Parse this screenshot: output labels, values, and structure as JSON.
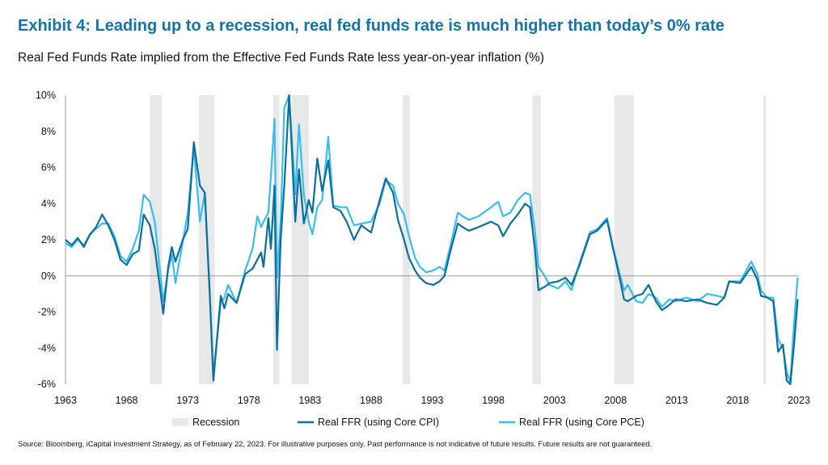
{
  "title": "Exhibit 4: Leading up to a recession, real fed funds rate is much higher than today’s 0% rate",
  "subtitle": "Real Fed Funds Rate implied from the Effective Fed Funds Rate less year-on-year inflation (%)",
  "source": "Source: Bloomberg, iCapital Investment Strategy, as of February 22, 2023. For illustrative purposes only. Past performance is not indicative of future results. Future results are not guaranteed.",
  "chart_data": {
    "type": "line",
    "xlim": [
      1963,
      2023
    ],
    "ylim": [
      -6,
      10
    ],
    "x_ticks": [
      "1963",
      "1968",
      "1973",
      "1978",
      "1983",
      "1988",
      "1993",
      "1998",
      "2003",
      "2008",
      "2013",
      "2018",
      "2023"
    ],
    "y_ticks": [
      "10%",
      "8%",
      "6%",
      "4%",
      "2%",
      "0%",
      "-2%",
      "-4%",
      "-6%"
    ],
    "legend_position": "bottom",
    "recession_label": "Recession",
    "recession_color": "#e8e8e8",
    "recessions": [
      [
        1969.9,
        1970.9
      ],
      [
        1973.9,
        1975.2
      ],
      [
        1980.0,
        1980.5
      ],
      [
        1981.5,
        1982.9
      ],
      [
        1990.6,
        1991.2
      ],
      [
        2001.2,
        2001.9
      ],
      [
        2007.9,
        2009.5
      ],
      [
        2020.1,
        2020.3
      ]
    ],
    "x": [
      1963.0,
      1963.5,
      1964.0,
      1964.5,
      1965.0,
      1965.5,
      1966.0,
      1966.5,
      1967.0,
      1967.5,
      1968.0,
      1968.5,
      1969.0,
      1969.4,
      1969.9,
      1970.3,
      1970.7,
      1971.0,
      1971.4,
      1971.7,
      1972.0,
      1972.6,
      1973.0,
      1973.5,
      1974.0,
      1974.4,
      1974.8,
      1975.1,
      1975.7,
      1976.0,
      1976.3,
      1977.0,
      1977.7,
      1978.3,
      1978.7,
      1979.0,
      1979.2,
      1979.6,
      1979.8,
      1980.1,
      1980.3,
      1980.6,
      1980.9,
      1981.3,
      1981.8,
      1982.1,
      1982.5,
      1982.9,
      1983.2,
      1983.6,
      1984.0,
      1984.5,
      1984.9,
      1985.5,
      1986.0,
      1986.6,
      1987.2,
      1988.0,
      1988.7,
      1989.2,
      1989.8,
      1990.2,
      1990.7,
      1991.1,
      1991.6,
      1992.0,
      1992.5,
      1993.1,
      1993.6,
      1994.0,
      1994.5,
      1995.1,
      1995.5,
      1996.0,
      1996.8,
      1997.8,
      1998.4,
      1998.8,
      1999.4,
      2000.0,
      2000.6,
      2001.0,
      2001.4,
      2001.7,
      2002.2,
      2002.6,
      2003.3,
      2003.9,
      2004.4,
      2005.0,
      2005.9,
      2006.5,
      2007.3,
      2007.8,
      2008.3,
      2008.7,
      2009.0,
      2009.7,
      2010.2,
      2010.7,
      2011.3,
      2011.8,
      2012.4,
      2012.9,
      2013.8,
      2014.7,
      2015.5,
      2016.3,
      2016.9,
      2017.3,
      2018.2,
      2019.1,
      2019.6,
      2019.9,
      2020.4,
      2020.9,
      2021.3,
      2021.7,
      2022.0,
      2022.3,
      2022.6,
      2022.9
    ],
    "series": [
      {
        "name": "Real FFR (using Core CPI)",
        "color": "#0b6f9c",
        "values": [
          2.0,
          1.7,
          2.1,
          1.6,
          2.3,
          2.7,
          3.4,
          2.8,
          2.0,
          0.9,
          0.6,
          1.2,
          1.4,
          3.4,
          2.8,
          1.5,
          -0.5,
          -2.1,
          0.5,
          1.6,
          0.8,
          2.0,
          2.6,
          7.4,
          5.0,
          4.6,
          -1.0,
          -5.8,
          -1.1,
          -1.8,
          -1.0,
          -1.5,
          0.1,
          0.4,
          0.9,
          1.3,
          0.5,
          3.2,
          1.5,
          5.0,
          -4.1,
          2.0,
          5.0,
          10.0,
          3.0,
          5.9,
          2.9,
          4.2,
          3.5,
          6.5,
          4.7,
          6.4,
          3.8,
          3.6,
          3.0,
          2.0,
          2.8,
          2.4,
          4.2,
          5.4,
          4.6,
          3.1,
          2.0,
          1.0,
          0.3,
          -0.1,
          -0.4,
          -0.5,
          -0.3,
          0.0,
          1.4,
          2.9,
          2.7,
          2.5,
          2.7,
          3.0,
          2.8,
          2.2,
          2.9,
          3.4,
          4.0,
          3.8,
          1.5,
          -0.8,
          -0.6,
          -0.4,
          -0.3,
          -0.1,
          -0.5,
          0.5,
          2.3,
          2.5,
          3.1,
          1.5,
          0.0,
          -1.3,
          -1.4,
          -1.1,
          -1.0,
          -0.5,
          -1.4,
          -1.9,
          -1.6,
          -1.3,
          -1.4,
          -1.3,
          -1.5,
          -1.6,
          -1.2,
          -0.3,
          -0.4,
          0.5,
          -0.2,
          -1.1,
          -1.2,
          -1.4,
          -4.2,
          -3.8,
          -5.8,
          -6.0,
          -3.8,
          -1.3
        ]
      },
      {
        "name": "Real FFR (using Core PCE)",
        "color": "#38bdf0",
        "values": [
          1.8,
          1.6,
          2.0,
          1.7,
          2.3,
          2.6,
          2.9,
          2.9,
          2.2,
          1.1,
          0.8,
          1.5,
          2.5,
          4.5,
          4.1,
          3.0,
          0.5,
          -1.4,
          0.3,
          1.2,
          -0.4,
          1.9,
          3.5,
          7.1,
          3.0,
          4.6,
          -1.0,
          -5.5,
          -1.5,
          -1.2,
          -0.5,
          -1.5,
          0.3,
          1.5,
          3.3,
          2.7,
          3.0,
          3.5,
          5.5,
          8.7,
          -0.1,
          3.0,
          9.3,
          10.0,
          4.5,
          8.4,
          4.5,
          3.0,
          2.3,
          3.8,
          4.2,
          7.7,
          3.9,
          3.8,
          3.8,
          2.8,
          2.9,
          3.0,
          4.0,
          5.3,
          5.0,
          4.0,
          3.4,
          2.2,
          1.0,
          0.5,
          0.2,
          0.3,
          0.5,
          0.3,
          1.7,
          3.5,
          3.3,
          3.1,
          3.3,
          3.8,
          4.1,
          3.3,
          3.5,
          4.2,
          4.6,
          4.5,
          2.5,
          0.5,
          0.0,
          -0.5,
          -0.7,
          -0.3,
          -0.8,
          0.6,
          2.4,
          2.6,
          3.2,
          1.6,
          0.2,
          -0.8,
          -0.5,
          -1.4,
          -1.5,
          -1.0,
          -1.2,
          -1.7,
          -1.3,
          -1.4,
          -1.2,
          -1.4,
          -1.0,
          -1.1,
          -1.2,
          -0.3,
          -0.3,
          0.8,
          0.1,
          -0.8,
          -1.2,
          -1.2,
          -3.5,
          -4.0,
          -5.3,
          -5.9,
          -2.6,
          -0.1
        ]
      }
    ]
  }
}
